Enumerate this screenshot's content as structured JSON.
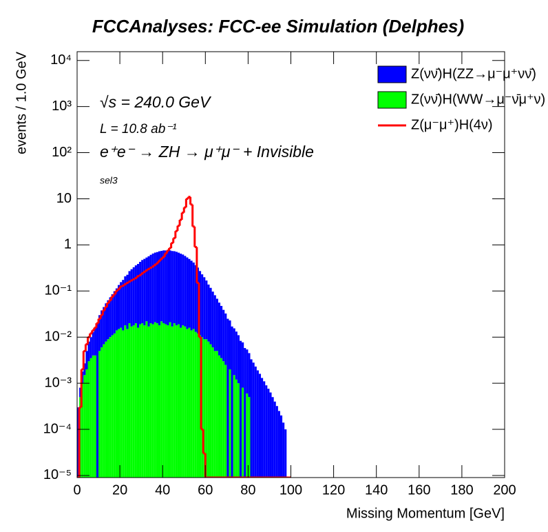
{
  "chart_data": {
    "type": "histogram",
    "title": "FCCAnalyses: FCC-ee Simulation (Delphes)",
    "x_label": "Missing Momentum [GeV]",
    "y_label": "events / 1.0 GeV",
    "annotations": [
      "√s = 240.0 GeV",
      "L = 10.8 ab⁻¹",
      "e⁺e⁻ → ZH → μ⁺μ⁻ + Invisible",
      "sel3"
    ],
    "log_y": true,
    "xlim": [
      0,
      200
    ],
    "xticks": [
      0,
      20,
      40,
      60,
      80,
      100,
      120,
      140,
      160,
      180,
      200
    ],
    "ylim": [
      9e-06,
      15500
    ],
    "yticks": [
      {
        "value": 1e-05,
        "label": "10⁻⁵"
      },
      {
        "value": 0.0001,
        "label": "10⁻⁴"
      },
      {
        "value": 0.001,
        "label": "10⁻³"
      },
      {
        "value": 0.01,
        "label": "10⁻²"
      },
      {
        "value": 0.1,
        "label": "10⁻¹"
      },
      1,
      10,
      {
        "value": 100,
        "label": "10²"
      },
      {
        "value": 1000,
        "label": "10³"
      },
      {
        "value": 10000,
        "label": "10⁴"
      }
    ],
    "legend": "upper right",
    "bins": [
      0,
      1,
      2,
      3,
      4,
      5,
      6,
      7,
      8,
      9,
      10,
      11,
      12,
      13,
      14,
      15,
      16,
      17,
      18,
      19,
      20,
      21,
      22,
      23,
      24,
      25,
      26,
      27,
      28,
      29,
      30,
      31,
      32,
      33,
      34,
      35,
      36,
      37,
      38,
      39,
      40,
      41,
      42,
      43,
      44,
      45,
      46,
      47,
      48,
      49,
      50,
      51,
      52,
      53,
      54,
      55,
      56,
      57,
      58,
      59,
      60,
      61,
      62,
      63,
      64,
      65,
      66,
      67,
      68,
      69,
      70,
      71,
      72,
      73,
      74,
      75,
      76,
      77,
      78,
      79,
      80,
      81,
      82,
      83,
      84,
      85,
      86,
      87,
      88,
      89,
      90,
      91,
      92,
      93,
      94,
      95,
      96,
      97,
      98,
      99,
      100
    ],
    "series": [
      {
        "name": "Z(νν̄)H(ZZ→μ⁻μ⁺νν̄)",
        "color": "#0000ff",
        "stacked": true,
        "values": [
          0.0003,
          0.0003,
          0.0008,
          0.0012,
          0.003,
          0.005,
          0.0065,
          0.009,
          0.012,
          0.02,
          0.025,
          0.032,
          0.038,
          0.046,
          0.054,
          0.063,
          0.074,
          0.087,
          0.1,
          0.12,
          0.14,
          0.16,
          0.19,
          0.21,
          0.25,
          0.28,
          0.31,
          0.34,
          0.37,
          0.41,
          0.45,
          0.48,
          0.51,
          0.55,
          0.59,
          0.63,
          0.66,
          0.68,
          0.71,
          0.72,
          0.74,
          0.74,
          0.74,
          0.74,
          0.72,
          0.71,
          0.69,
          0.66,
          0.63,
          0.6,
          0.56,
          0.52,
          0.48,
          0.44,
          0.4,
          0.35,
          0.31,
          0.26,
          0.22,
          0.19,
          0.16,
          0.13,
          0.11,
          0.091,
          0.076,
          0.063,
          0.052,
          0.044,
          0.036,
          0.03,
          0.025,
          0.021,
          0.017,
          0.014,
          0.012,
          0.01,
          0.0083,
          0.0069,
          0.0058,
          0.0048,
          0.004,
          0.0033,
          0.0028,
          0.0023,
          0.0019,
          0.0016,
          0.0013,
          0.0011,
          0.0009,
          0.00076,
          0.00063,
          0.0005,
          0.0004,
          0.00032,
          0.00025,
          0.0002,
          0.00014,
          0.0001,
          0,
          0
        ]
      },
      {
        "name": "Z(νν̄)H(WW→μ⁻ν̄μ⁺ν)",
        "color": "#00ff00",
        "stacked": true,
        "values": [
          0,
          0.0005,
          0.001,
          0.0015,
          0.002,
          0.003,
          0.0035,
          0.004,
          0.004,
          0,
          0.005,
          0.006,
          0.007,
          0.008,
          0.009,
          0.01,
          0.011,
          0.012,
          0.014,
          0.015,
          0.016,
          0.014,
          0.018,
          0.015,
          0.02,
          0.017,
          0.018,
          0.02,
          0.016,
          0.019,
          0.02,
          0.018,
          0.022,
          0.017,
          0.02,
          0.019,
          0.021,
          0.02,
          0.018,
          0.022,
          0.02,
          0.019,
          0.018,
          0.021,
          0.017,
          0.02,
          0.018,
          0.019,
          0.016,
          0.018,
          0.017,
          0.015,
          0.016,
          0.014,
          0.015,
          0.013,
          0.012,
          0.011,
          0.01,
          0.009,
          0.009,
          0.008,
          0.007,
          0.006,
          0.005,
          0.005,
          0.004,
          0.0035,
          0.003,
          0.0025,
          0,
          0.002,
          0,
          0.0015,
          0.0012,
          0.001,
          0,
          0.0008,
          0,
          0.0006,
          0.0005,
          0,
          0,
          0,
          0,
          0,
          0,
          0,
          0,
          0,
          0,
          0,
          0,
          0,
          0,
          0,
          0,
          0,
          0,
          0
        ]
      },
      {
        "name": "Z(μ⁻μ⁺)H(4ν)",
        "color": "#ff0000",
        "stacked": false,
        "values": [
          0,
          0.0003,
          0.002,
          0.005,
          0.007,
          0.01,
          0.012,
          0.014,
          0.016,
          0.02,
          0.025,
          0.03,
          0.038,
          0.045,
          0.055,
          0.063,
          0.075,
          0.085,
          0.1,
          0.11,
          0.125,
          0.13,
          0.14,
          0.15,
          0.16,
          0.17,
          0.18,
          0.19,
          0.21,
          0.22,
          0.24,
          0.26,
          0.28,
          0.3,
          0.32,
          0.34,
          0.37,
          0.4,
          0.45,
          0.5,
          0.55,
          0.65,
          0.75,
          0.85,
          1.1,
          1.4,
          2,
          2.6,
          3.5,
          5,
          6.5,
          10,
          11,
          7.5,
          2.5,
          0.9,
          0.15,
          0.01,
          0.0001,
          3e-05,
          0,
          0,
          0,
          0,
          0,
          0,
          0,
          0,
          0,
          0,
          0,
          0,
          0,
          0,
          0,
          0,
          0,
          0,
          0,
          0,
          0,
          0,
          0,
          0,
          0,
          0,
          0,
          0,
          0,
          0,
          0,
          0,
          0,
          0,
          0,
          0,
          0,
          0,
          0,
          0
        ]
      }
    ]
  }
}
